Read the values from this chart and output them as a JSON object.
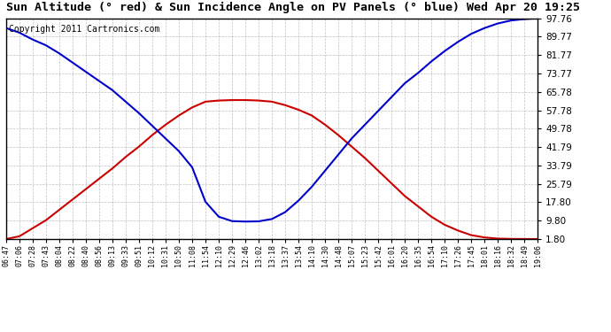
{
  "title": "Sun Altitude (° red) & Sun Incidence Angle on PV Panels (° blue) Wed Apr 20 19:25",
  "copyright": "Copyright 2011 Cartronics.com",
  "ylim": [
    1.8,
    97.76
  ],
  "yticks": [
    1.8,
    9.8,
    17.8,
    25.79,
    33.79,
    41.79,
    49.78,
    57.78,
    65.78,
    73.77,
    81.77,
    89.77,
    97.76
  ],
  "x_labels": [
    "06:47",
    "07:06",
    "07:28",
    "07:43",
    "08:04",
    "08:22",
    "08:40",
    "08:56",
    "09:13",
    "09:33",
    "09:51",
    "10:12",
    "10:31",
    "10:50",
    "11:08",
    "11:54",
    "12:10",
    "12:29",
    "12:46",
    "13:02",
    "13:18",
    "13:37",
    "13:54",
    "14:10",
    "14:30",
    "14:48",
    "15:07",
    "15:23",
    "15:42",
    "16:01",
    "16:20",
    "16:35",
    "16:54",
    "17:10",
    "17:26",
    "17:45",
    "18:01",
    "18:16",
    "18:32",
    "18:49",
    "19:06"
  ],
  "red_values": [
    1.8,
    3.0,
    6.5,
    10.0,
    14.5,
    19.0,
    23.5,
    28.0,
    32.5,
    37.5,
    42.0,
    47.0,
    51.5,
    55.5,
    59.0,
    61.5,
    62.0,
    62.2,
    62.2,
    62.0,
    61.5,
    60.0,
    58.0,
    55.5,
    51.5,
    47.0,
    42.0,
    37.0,
    31.5,
    26.0,
    20.5,
    16.0,
    11.5,
    8.0,
    5.5,
    3.5,
    2.5,
    2.0,
    1.85,
    1.82,
    1.8
  ],
  "blue_values": [
    93.5,
    91.5,
    88.5,
    86.0,
    82.5,
    78.5,
    74.5,
    70.5,
    66.5,
    61.5,
    56.5,
    51.0,
    45.5,
    40.0,
    33.0,
    18.0,
    11.5,
    9.6,
    9.4,
    9.5,
    10.5,
    13.5,
    18.5,
    24.5,
    31.5,
    38.5,
    45.5,
    51.5,
    57.5,
    63.5,
    69.5,
    74.0,
    79.0,
    83.5,
    87.5,
    91.0,
    93.5,
    95.5,
    96.8,
    97.4,
    97.76
  ],
  "background_color": "#ffffff",
  "plot_bg_color": "#ffffff",
  "grid_color": "#b0b0b0",
  "red_color": "#cc0000",
  "blue_color": "#0000cc",
  "title_fontsize": 9.5,
  "copyright_fontsize": 7
}
